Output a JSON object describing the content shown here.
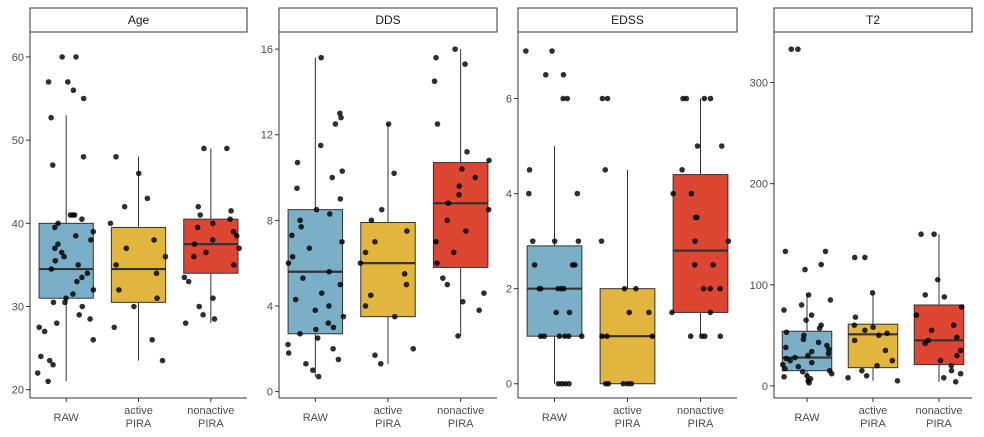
{
  "chart_data": {
    "type": "box",
    "facets": [
      {
        "title": "Age",
        "ylim": [
          19,
          63
        ],
        "yticks": [
          20,
          30,
          40,
          50,
          60
        ],
        "categories": [
          "RAW",
          "active\nPIRA",
          "nonactive\nPIRA"
        ],
        "boxes": [
          {
            "q1": 31.0,
            "median": 34.5,
            "q3": 40.0,
            "whisker_low": 21.0,
            "whisker_high": 53.0,
            "color": "#7BAFC8",
            "points": [
              22,
              21,
              27.5,
              23,
              23.5,
              24,
              26,
              27,
              28,
              28.5,
              29,
              30,
              30.5,
              30.5,
              31,
              31.5,
              32,
              33,
              33.5,
              34,
              34.5,
              35,
              35.5,
              36,
              36.5,
              37,
              37.5,
              38,
              38.5,
              39,
              39.5,
              40,
              40.5,
              41,
              41,
              41,
              47,
              48,
              52.7,
              55,
              56,
              57,
              57,
              60,
              60
            ]
          },
          {
            "q1": 30.5,
            "median": 34.5,
            "q3": 39.5,
            "whisker_low": 23.5,
            "whisker_high": 48.0,
            "color": "#E2B53F",
            "points": [
              23.5,
              26,
              27.5,
              30,
              31,
              32,
              34,
              35,
              36,
              37,
              38,
              40,
              42,
              43,
              46,
              48
            ]
          },
          {
            "q1": 34.0,
            "median": 37.5,
            "q3": 40.5,
            "whisker_low": 28.0,
            "whisker_high": 49.0,
            "color": "#DE4634",
            "points": [
              28,
              28.5,
              29,
              30,
              31,
              33,
              33.5,
              35,
              36,
              36.5,
              37,
              37.5,
              38,
              38.5,
              39,
              39.5,
              40,
              40.5,
              41,
              41.5,
              42,
              49,
              49
            ]
          }
        ]
      },
      {
        "title": "DDS",
        "ylim": [
          -0.3,
          16.8
        ],
        "yticks": [
          0,
          4,
          8,
          12,
          16
        ],
        "categories": [
          "RAW",
          "active\nPIRA",
          "nonactive\nPIRA"
        ],
        "boxes": [
          {
            "q1": 2.7,
            "median": 5.6,
            "q3": 8.5,
            "whisker_low": 0.7,
            "whisker_high": 15.6,
            "color": "#7BAFC8",
            "points": [
              0.7,
              1,
              1.3,
              1.5,
              1.8,
              2,
              2.2,
              2.5,
              2.7,
              2.9,
              3,
              3.2,
              3.5,
              3.8,
              4,
              4.3,
              4.6,
              5,
              5.3,
              5.6,
              6,
              6.3,
              6.7,
              7,
              7.3,
              7.7,
              8,
              8.3,
              8.5,
              9,
              9.5,
              10,
              10.3,
              10.7,
              11.5,
              12.5,
              12.8,
              13,
              15.6
            ]
          },
          {
            "q1": 3.5,
            "median": 6.0,
            "q3": 7.9,
            "whisker_low": 1.3,
            "whisker_high": 12.5,
            "color": "#E2B53F",
            "points": [
              1.3,
              1.7,
              2,
              3.5,
              4,
              4.5,
              5,
              5.5,
              6,
              6.5,
              7,
              7.5,
              8,
              8.5,
              10.2,
              12.5
            ]
          },
          {
            "q1": 5.8,
            "median": 8.8,
            "q3": 10.7,
            "whisker_low": 2.6,
            "whisker_high": 16.0,
            "color": "#DE4634",
            "points": [
              2.6,
              3.8,
              4.2,
              4.6,
              5,
              5.3,
              6,
              6.5,
              7,
              7.5,
              8,
              8.5,
              8.8,
              9.2,
              9.6,
              10,
              10.4,
              10.8,
              11.2,
              12.5,
              14.5,
              15.3,
              15.6,
              16
            ]
          }
        ]
      },
      {
        "title": "EDSS",
        "ylim": [
          -0.3,
          7.4
        ],
        "yticks": [
          0,
          2,
          4,
          6
        ],
        "categories": [
          "RAW",
          "active\nPIRA",
          "nonactive\nPIRA"
        ],
        "boxes": [
          {
            "q1": 1.0,
            "median": 2.0,
            "q3": 2.9,
            "whisker_low": 0.0,
            "whisker_high": 5.0,
            "color": "#7BAFC8",
            "points": [
              0,
              0,
              0,
              0,
              1,
              1,
              1,
              1,
              1,
              1,
              1.5,
              1.5,
              2,
              2,
              2,
              2,
              2,
              2.5,
              2.5,
              2.5,
              3,
              3,
              3,
              4,
              4,
              4.5,
              6,
              6,
              6.5,
              6.5,
              7,
              7
            ]
          },
          {
            "q1": 0.0,
            "median": 1.0,
            "q3": 2.0,
            "whisker_low": 0.0,
            "whisker_high": 4.5,
            "color": "#E2B53F",
            "points": [
              0,
              0,
              0,
              0,
              0,
              1,
              1,
              1,
              1.5,
              1.5,
              2,
              2,
              3,
              4.5,
              6,
              6
            ]
          },
          {
            "q1": 1.5,
            "median": 2.8,
            "q3": 4.4,
            "whisker_low": 1.0,
            "whisker_high": 6.0,
            "color": "#DE4634",
            "points": [
              1,
              1,
              1,
              1,
              1.5,
              1.5,
              2,
              2,
              2,
              2.5,
              2.5,
              3,
              3,
              3.5,
              3.5,
              4,
              4,
              4.5,
              5,
              5,
              6,
              6,
              6,
              6
            ]
          }
        ]
      },
      {
        "title": "T2",
        "ylim": [
          -12,
          350
        ],
        "yticks": [
          0,
          100,
          200,
          300
        ],
        "categories": [
          "RAW",
          "active\nPIRA",
          "nonactive\nPIRA"
        ],
        "boxes": [
          {
            "q1": 15,
            "median": 28,
            "q3": 54,
            "whisker_low": 3,
            "whisker_high": 90,
            "color": "#7BAFC8",
            "points": [
              3,
              5,
              7,
              9,
              10,
              12,
              14,
              15,
              17,
              19,
              21,
              23,
              25,
              27,
              28,
              30,
              32,
              34,
              36,
              38,
              40,
              43,
              46,
              50,
              53,
              57,
              60,
              65,
              70,
              75,
              80,
              85,
              90,
              115,
              120,
              133,
              133,
              333,
              333
            ]
          },
          {
            "q1": 18,
            "median": 51,
            "q3": 61,
            "whisker_low": 5,
            "whisker_high": 92,
            "color": "#E2B53F",
            "points": [
              5,
              8,
              10,
              15,
              20,
              25,
              35,
              45,
              50,
              52,
              55,
              58,
              60,
              68,
              92,
              127,
              127
            ]
          },
          {
            "q1": 21,
            "median": 45,
            "q3": 80,
            "whisker_low": 4,
            "whisker_high": 150,
            "color": "#DE4634",
            "points": [
              4,
              8,
              12,
              15,
              20,
              25,
              30,
              35,
              42,
              45,
              48,
              55,
              60,
              70,
              78,
              88,
              90,
              105,
              150,
              150
            ]
          }
        ]
      }
    ]
  }
}
